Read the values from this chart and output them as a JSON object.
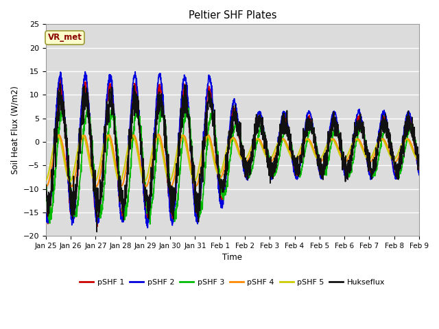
{
  "title": "Peltier SHF Plates",
  "xlabel": "Time",
  "ylabel": "Soil Heat Flux (W/m2)",
  "ylim": [
    -20,
    25
  ],
  "bg_color": "#dcdcdc",
  "legend_entries": [
    "pSHF 1",
    "pSHF 2",
    "pSHF 3",
    "pSHF 4",
    "pSHF 5",
    "Hukseflux"
  ],
  "line_colors": [
    "#cc0000",
    "#0000dd",
    "#00bb00",
    "#ff8800",
    "#cccc00",
    "#111111"
  ],
  "xtick_labels": [
    "Jan 25",
    "Jan 26",
    "Jan 27",
    "Jan 28",
    "Jan 29",
    "Jan 30",
    "Jan 31",
    "Feb 1",
    "Feb 2",
    "Feb 3",
    "Feb 4",
    "Feb 5",
    "Feb 6",
    "Feb 7",
    "Feb 8",
    "Feb 9"
  ],
  "annotation_text": "VR_met",
  "annotation_color": "#880000",
  "annotation_bg": "#ffffcc",
  "annotation_edge": "#999933"
}
